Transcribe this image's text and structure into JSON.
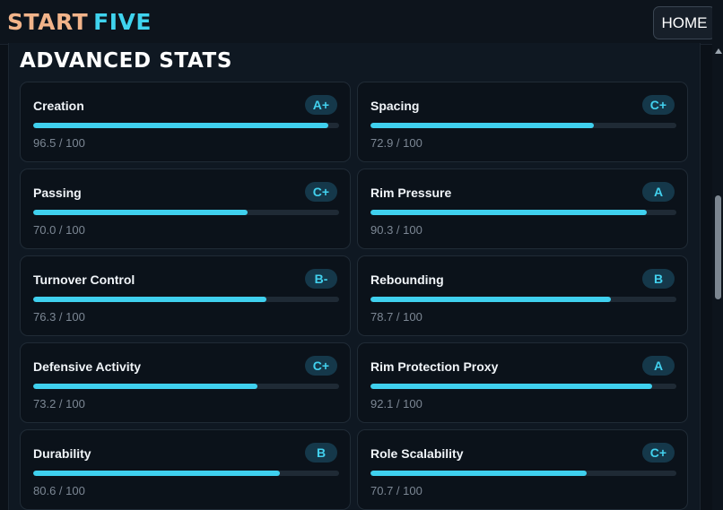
{
  "header": {
    "logo_part1": "START",
    "logo_part2": "FIVE",
    "home_label": "HOME"
  },
  "section": {
    "title": "ADVANCED STATS"
  },
  "stats": [
    {
      "label": "Creation",
      "grade": "A+",
      "value": 96.5,
      "display": "96.5 / 100"
    },
    {
      "label": "Spacing",
      "grade": "C+",
      "value": 72.9,
      "display": "72.9 / 100"
    },
    {
      "label": "Passing",
      "grade": "C+",
      "value": 70.0,
      "display": "70.0 / 100"
    },
    {
      "label": "Rim Pressure",
      "grade": "A",
      "value": 90.3,
      "display": "90.3 / 100"
    },
    {
      "label": "Turnover Control",
      "grade": "B-",
      "value": 76.3,
      "display": "76.3 / 100"
    },
    {
      "label": "Rebounding",
      "grade": "B",
      "value": 78.7,
      "display": "78.7 / 100"
    },
    {
      "label": "Defensive Activity",
      "grade": "C+",
      "value": 73.2,
      "display": "73.2 / 100"
    },
    {
      "label": "Rim Protection Proxy",
      "grade": "A",
      "value": 92.1,
      "display": "92.1 / 100"
    },
    {
      "label": "Durability",
      "grade": "B",
      "value": 80.6,
      "display": "80.6 / 100"
    },
    {
      "label": "Role Scalability",
      "grade": "C+",
      "value": 70.7,
      "display": "70.7 / 100"
    }
  ],
  "colors": {
    "accent": "#3fd0ee",
    "logo_start": "#f2b48a",
    "logo_five": "#3fd3ee",
    "grade_bg": "#15384a"
  }
}
